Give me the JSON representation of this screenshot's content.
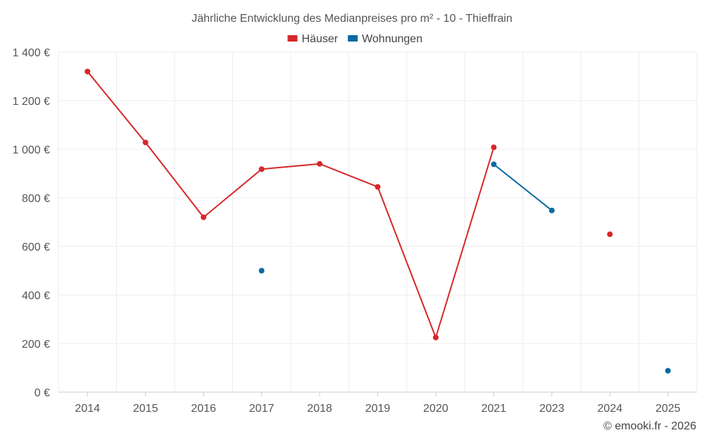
{
  "chart_data": {
    "type": "line",
    "title": "Jährliche Entwicklung des Medianpreises pro m² - 10 - Thieffrain",
    "xlabel": "",
    "ylabel": "",
    "categories": [
      "2014",
      "2015",
      "2016",
      "2017",
      "2018",
      "2019",
      "2020",
      "2021",
      "2023",
      "2024",
      "2025"
    ],
    "ylim": [
      0,
      1400
    ],
    "y_ticks": [
      0,
      200,
      400,
      600,
      800,
      1000,
      1200,
      1400
    ],
    "y_tick_labels": [
      "0 €",
      "200 €",
      "400 €",
      "600 €",
      "800 €",
      "1 000 €",
      "1 200 €",
      "1 400 €"
    ],
    "grid": true,
    "legend_position": "top-center",
    "series": [
      {
        "name": "Häuser",
        "color": "#d62728",
        "values": [
          1320,
          1028,
          720,
          918,
          940,
          845,
          225,
          1008,
          null,
          650,
          null
        ]
      },
      {
        "name": "Wohnungen",
        "color": "#0a6aa1",
        "values": [
          null,
          null,
          null,
          500,
          null,
          null,
          null,
          938,
          748,
          null,
          88
        ]
      }
    ]
  },
  "footer": "© emooki.fr - 2026"
}
